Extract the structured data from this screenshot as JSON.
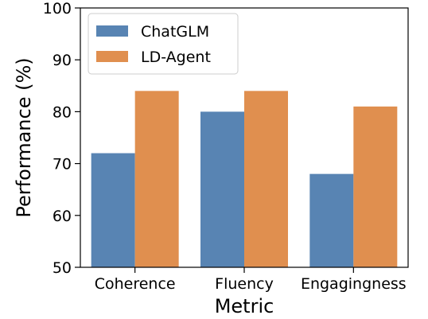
{
  "chart_data": {
    "type": "bar",
    "title": "",
    "xlabel": "Metric",
    "ylabel": "Performance (%)",
    "categories": [
      "Coherence",
      "Fluency",
      "Engagingness"
    ],
    "series": [
      {
        "name": "ChatGLM",
        "values": [
          72,
          80,
          68
        ],
        "color": "#5884b3"
      },
      {
        "name": "LD-Agent",
        "values": [
          84,
          84,
          81
        ],
        "color": "#e08f4f"
      }
    ],
    "ylim": [
      50,
      100
    ],
    "yticks": [
      "50",
      "60",
      "70",
      "80",
      "90",
      "100"
    ],
    "grid": false,
    "legend_position": "top-left"
  }
}
